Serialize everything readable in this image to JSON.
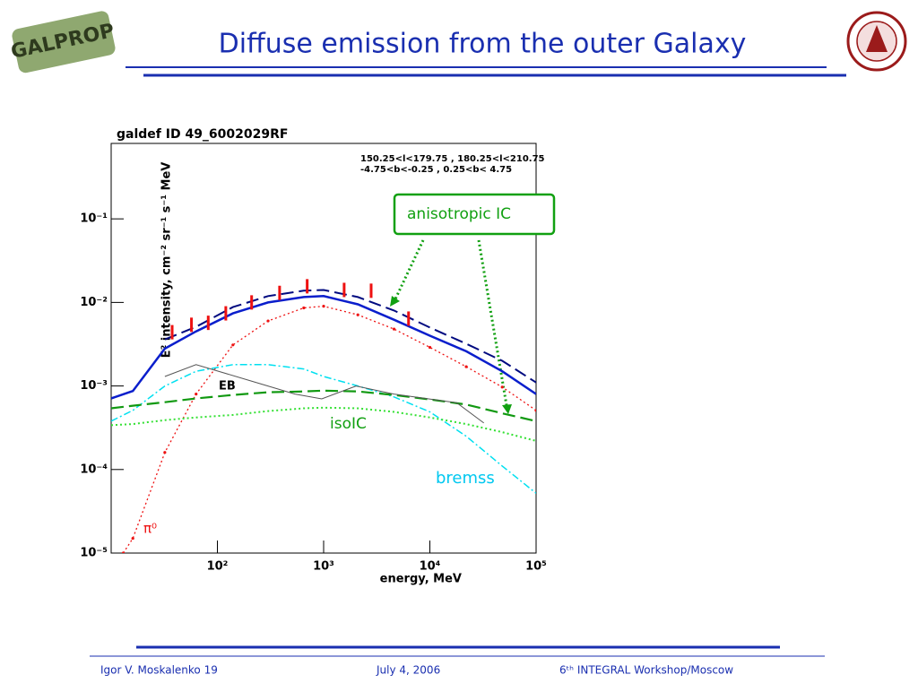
{
  "header": {
    "title": "Diffuse emission from the outer Galaxy",
    "logo_text": "GALPROP"
  },
  "chart_data": {
    "type": "line",
    "title": "galdef ID 49_6002029RF",
    "region": [
      "150.25<l<179.75 , 180.25<l<210.75",
      "-4.75<b<-0.25 ,  0.25<b< 4.75"
    ],
    "xlabel": "energy, MeV",
    "ylabel": "E² intensity, cm⁻² sr⁻¹ s⁻¹ MeV",
    "xlog": true,
    "ylog": true,
    "xlim": [
      10,
      100000
    ],
    "ylim": [
      1e-05,
      0.8
    ],
    "xticks": [
      {
        "value": 100,
        "label": "10²"
      },
      {
        "value": 1000,
        "label": "10³"
      },
      {
        "value": 10000,
        "label": "10⁴"
      },
      {
        "value": 100000,
        "label": "10⁵"
      }
    ],
    "yticks": [
      {
        "value": 1e-05,
        "label": "10⁻⁵"
      },
      {
        "value": 0.0001,
        "label": "10⁻⁴"
      },
      {
        "value": 0.001,
        "label": "10⁻³"
      },
      {
        "value": 0.01,
        "label": "10⁻²"
      },
      {
        "value": 0.1,
        "label": "10⁻¹"
      }
    ],
    "series": [
      {
        "color": "#0a1ecc",
        "dash": "solid",
        "width": 2.5,
        "x": [
          10,
          16,
          32,
          63,
          140,
          300,
          650,
          1000,
          2100,
          4600,
          10000,
          22000,
          48000,
          100000
        ],
        "values": [
          0.00071,
          0.00087,
          0.0028,
          0.0045,
          0.0074,
          0.01,
          0.0116,
          0.0119,
          0.0095,
          0.0062,
          0.004,
          0.0026,
          0.0015,
          0.0008
        ]
      },
      {
        "color": "#000a80",
        "dash": "dashed",
        "width": 2,
        "x": [
          10,
          16,
          32,
          63,
          140,
          300,
          650,
          1000,
          2100,
          4600,
          10000,
          22000,
          48000,
          100000
        ],
        "values": [
          null,
          null,
          0.0036,
          0.0051,
          0.0088,
          0.0119,
          0.0138,
          0.0141,
          0.0116,
          0.008,
          0.005,
          0.0032,
          0.002,
          0.0011
        ]
      },
      {
        "color": "#ee1111",
        "dash": "dotted",
        "width": 1.3,
        "dots": true,
        "x": [
          13,
          16,
          32,
          63,
          140,
          300,
          650,
          1000,
          2100,
          4600,
          10000,
          22000,
          48000,
          100000
        ],
        "values": [
          1e-05,
          1.5e-05,
          0.00016,
          0.0008,
          0.0031,
          0.006,
          0.0086,
          0.009,
          0.0071,
          0.0048,
          0.0029,
          0.0017,
          0.00097,
          0.00051
        ]
      },
      {
        "color": "#00e0f0",
        "dash": "dashdot",
        "width": 1.5,
        "x": [
          10,
          16,
          32,
          63,
          140,
          300,
          650,
          1000,
          2100,
          4600,
          10000,
          22000,
          48000,
          100000
        ],
        "values": [
          0.00038,
          0.00051,
          0.001,
          0.0015,
          0.0018,
          0.0018,
          0.0016,
          0.0013,
          0.001,
          0.00074,
          0.00049,
          0.00025,
          0.00011,
          5.2e-05
        ]
      },
      {
        "color": "#119911",
        "dash": "dashed",
        "width": 2.2,
        "x": [
          10,
          16,
          32,
          63,
          140,
          300,
          650,
          1000,
          2100,
          4600,
          10000,
          22000,
          48000,
          100000
        ],
        "values": [
          0.00054,
          0.00058,
          0.00064,
          0.00071,
          0.00078,
          0.00084,
          0.00086,
          0.00088,
          0.00086,
          0.00078,
          0.00069,
          0.0006,
          0.00047,
          0.00038
        ]
      },
      {
        "color": "#33e033",
        "dash": "dotted",
        "width": 2,
        "x": [
          10,
          16,
          32,
          63,
          140,
          300,
          650,
          1000,
          2100,
          4600,
          10000,
          22000,
          48000,
          100000
        ],
        "values": [
          0.00034,
          0.00035,
          0.00039,
          0.00042,
          0.00045,
          0.0005,
          0.00054,
          0.00055,
          0.00054,
          0.00049,
          0.00042,
          0.00035,
          0.00028,
          0.00022
        ]
      },
      {
        "color": "#555555",
        "dash": "solid",
        "width": 1,
        "x": [
          32,
          63,
          202,
          537,
          960,
          2020,
          4580,
          17900,
          32200
        ],
        "values": [
          0.0013,
          0.0018,
          0.00116,
          0.0008,
          0.0007,
          0.001,
          0.0008,
          0.00063,
          0.00036
        ]
      },
      {
        "color": "#ee1111",
        "marker": "bar",
        "x": [
          37.5,
          57,
          82,
          120,
          210,
          385,
          700,
          1560,
          2800,
          6300
        ],
        "values": [
          0.0044,
          0.0054,
          0.0057,
          0.0074,
          0.01,
          0.013,
          0.0156,
          0.0141,
          0.0138,
          0.0064
        ]
      }
    ],
    "annotations": [
      "EB",
      "isoIC",
      "bremss",
      "π⁰",
      "anisotropic IC"
    ]
  },
  "footer": {
    "author": "Igor V. Moskalenko  19",
    "date": "July 4, 2006",
    "event": "6ᵗʰ INTEGRAL Workshop/Moscow"
  }
}
